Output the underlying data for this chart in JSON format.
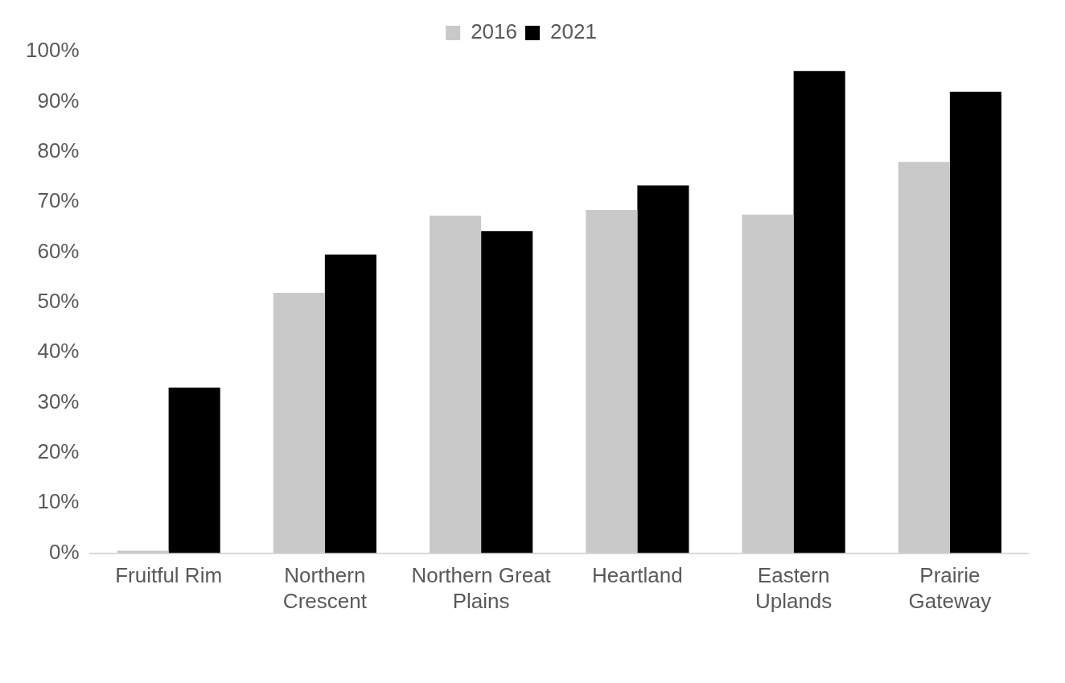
{
  "chart_data": {
    "type": "bar",
    "categories": [
      "Fruitful Rim",
      "Northern Crescent",
      "Northern Great Plains",
      "Heartland",
      "Eastern Uplands",
      "Prairie Gateway"
    ],
    "series": [
      {
        "name": "2016",
        "color": "#c9c9c9",
        "values": [
          0.5,
          51.9,
          67.3,
          68.4,
          67.5,
          78.0
        ]
      },
      {
        "name": "2021",
        "color": "#000000",
        "values": [
          33.0,
          59.5,
          64.2,
          73.3,
          96.1,
          92.0
        ]
      }
    ],
    "ylim": [
      0,
      100
    ],
    "yticks": [
      {
        "value": 0,
        "label": "0%"
      },
      {
        "value": 10,
        "label": "10%"
      },
      {
        "value": 20,
        "label": "20%"
      },
      {
        "value": 30,
        "label": "30%"
      },
      {
        "value": 40,
        "label": "40%"
      },
      {
        "value": 50,
        "label": "50%"
      },
      {
        "value": 60,
        "label": "60%"
      },
      {
        "value": 70,
        "label": "70%"
      },
      {
        "value": 80,
        "label": "80%"
      },
      {
        "value": 90,
        "label": "90%"
      },
      {
        "value": 100,
        "label": "100%"
      }
    ],
    "grid": false,
    "legend": "top"
  }
}
